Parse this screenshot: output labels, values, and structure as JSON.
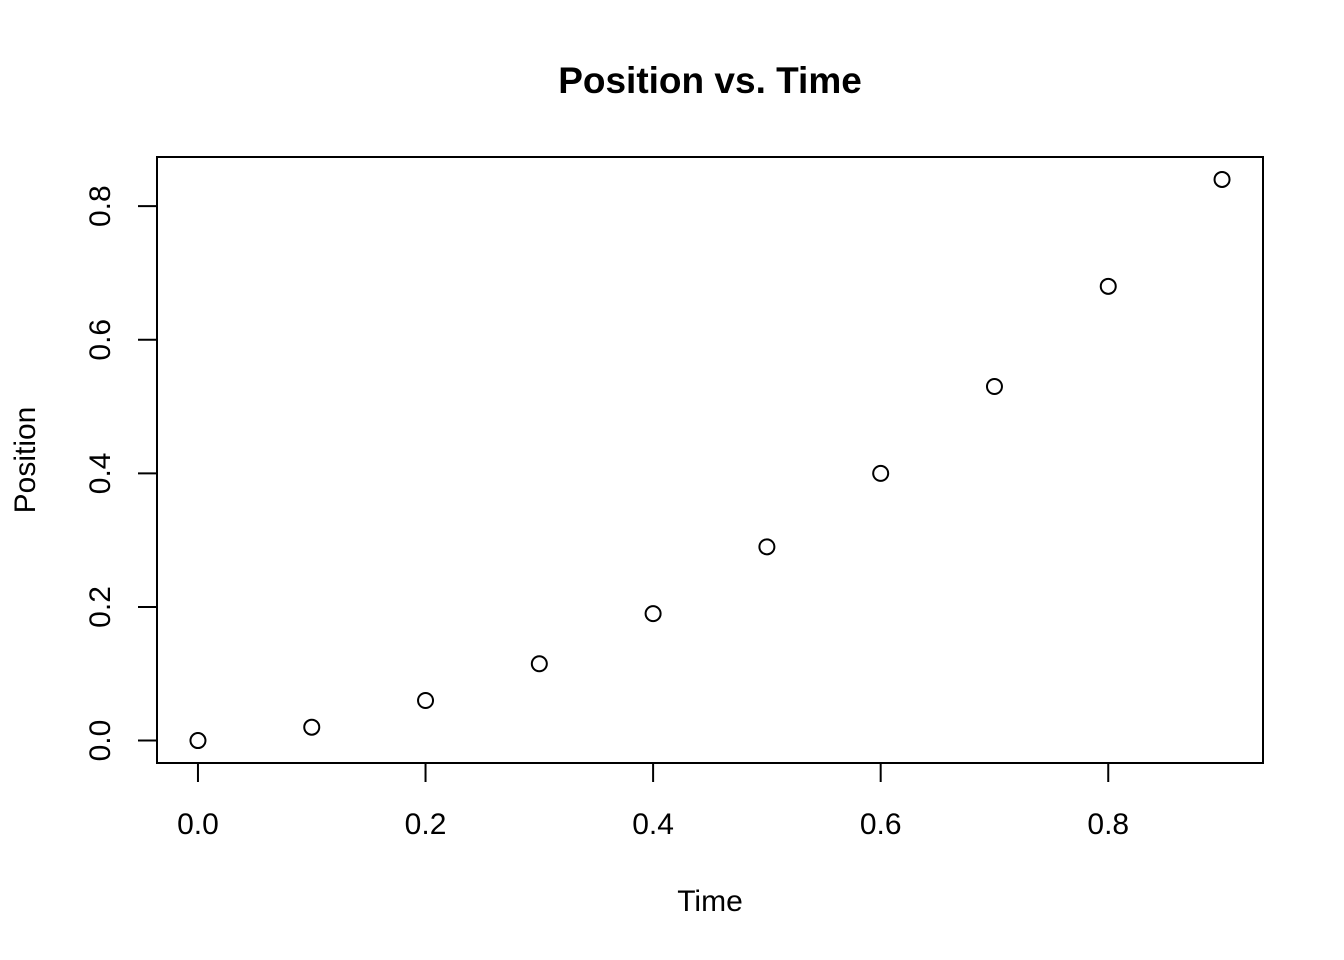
{
  "chart_data": {
    "type": "scatter",
    "title": "Position vs. Time",
    "xlabel": "Time",
    "ylabel": "Position",
    "xlim": [
      -0.036,
      0.936
    ],
    "ylim": [
      -0.0336,
      0.8736
    ],
    "x_ticks": [
      0.0,
      0.2,
      0.4,
      0.6,
      0.8
    ],
    "x_tick_labels": [
      "0.0",
      "0.2",
      "0.4",
      "0.6",
      "0.8"
    ],
    "y_ticks": [
      0.0,
      0.2,
      0.4,
      0.6,
      0.8
    ],
    "y_tick_labels": [
      "0.0",
      "0.2",
      "0.4",
      "0.6",
      "0.8"
    ],
    "grid": false,
    "marker": "open-circle",
    "series": [
      {
        "x": [
          0.0,
          0.1,
          0.2,
          0.3,
          0.4,
          0.5,
          0.6,
          0.7,
          0.8,
          0.9
        ],
        "y": [
          0.0,
          0.02,
          0.06,
          0.115,
          0.19,
          0.29,
          0.4,
          0.53,
          0.68,
          0.84
        ]
      }
    ]
  }
}
